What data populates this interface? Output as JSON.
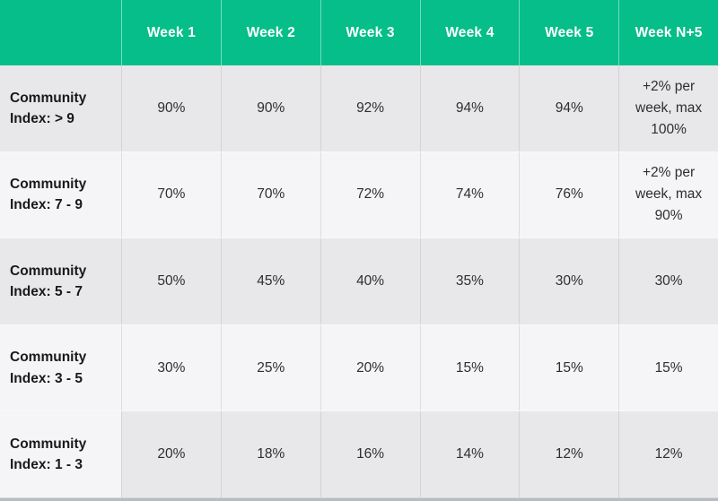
{
  "colors": {
    "header_bg": "#05be8a",
    "header_text": "#ffffff",
    "row_gray": "#e8e8ea",
    "row_light": "#f5f5f7",
    "label_text": "#18181d",
    "cell_text": "#2e2e33",
    "bottom_strip": "#b8bbc1"
  },
  "table": {
    "corner_label": "",
    "columns": [
      "Week 1",
      "Week 2",
      "Week 3",
      "Week 4",
      "Week 5",
      "Week N+5"
    ],
    "rows": [
      {
        "label": "Community\nIndex: > 9",
        "cells": [
          "90%",
          "90%",
          "92%",
          "94%",
          "94%",
          "+2% per\nweek, max\n100%"
        ]
      },
      {
        "label": "Community\nIndex: 7 - 9",
        "cells": [
          "70%",
          "70%",
          "72%",
          "74%",
          "76%",
          "+2% per\nweek, max\n90%"
        ]
      },
      {
        "label": "Community\nIndex: 5 - 7",
        "cells": [
          "50%",
          "45%",
          "40%",
          "35%",
          "30%",
          "30%"
        ]
      },
      {
        "label": "Community\nIndex: 3 - 5",
        "cells": [
          "30%",
          "25%",
          "20%",
          "15%",
          "15%",
          "15%"
        ]
      },
      {
        "label": "Community\nIndex: 1 - 3",
        "cells": [
          "20%",
          "18%",
          "16%",
          "14%",
          "12%",
          "12%"
        ]
      }
    ]
  }
}
